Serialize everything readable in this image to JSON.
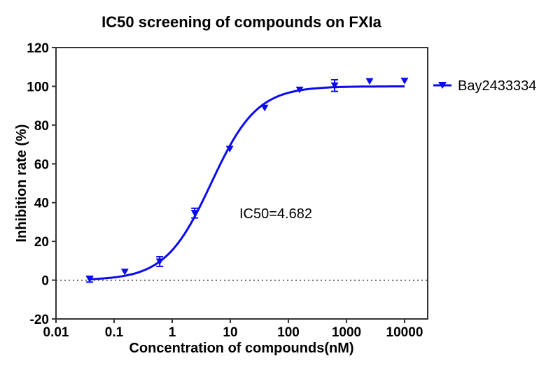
{
  "chart_data": {
    "type": "scatter",
    "title": "IC50 screening of compounds on FXIa",
    "xlabel": "Concentration of compounds(nM)",
    "ylabel": "Inhibition rate (%)",
    "x_scale": "log",
    "xlim": [
      0.01,
      25000
    ],
    "ylim": [
      -20,
      120
    ],
    "x_ticks": [
      0.01,
      0.1,
      1,
      10,
      100,
      1000,
      10000
    ],
    "x_tick_labels": [
      "0.01",
      "0.1",
      "1",
      "10",
      "100",
      "1000",
      "10000"
    ],
    "y_ticks": [
      -20,
      0,
      20,
      40,
      60,
      80,
      100,
      120
    ],
    "y_tick_labels": [
      "-20",
      "0",
      "20",
      "40",
      "60",
      "80",
      "100",
      "120"
    ],
    "grid": false,
    "zero_line": "dotted",
    "legend_position": "right",
    "annotation": "IC50=4.682",
    "series": [
      {
        "name": "Bay2433334",
        "color": "#0a0aef",
        "marker": "inverted-triangle",
        "x": [
          0.038,
          0.153,
          0.61,
          2.44,
          9.77,
          39.06,
          156.25,
          625,
          2500,
          10000
        ],
        "y": [
          0.5,
          4.3,
          9.6,
          34.6,
          67.7,
          88.9,
          98.2,
          100.4,
          102.6,
          102.8
        ],
        "error": [
          1.5,
          0,
          2.5,
          2.5,
          0,
          0,
          0,
          3,
          0,
          0
        ],
        "fit": {
          "model": "4PL",
          "bottom": 0,
          "top": 100,
          "ic50": 4.682,
          "hill": 1.1
        }
      }
    ]
  }
}
